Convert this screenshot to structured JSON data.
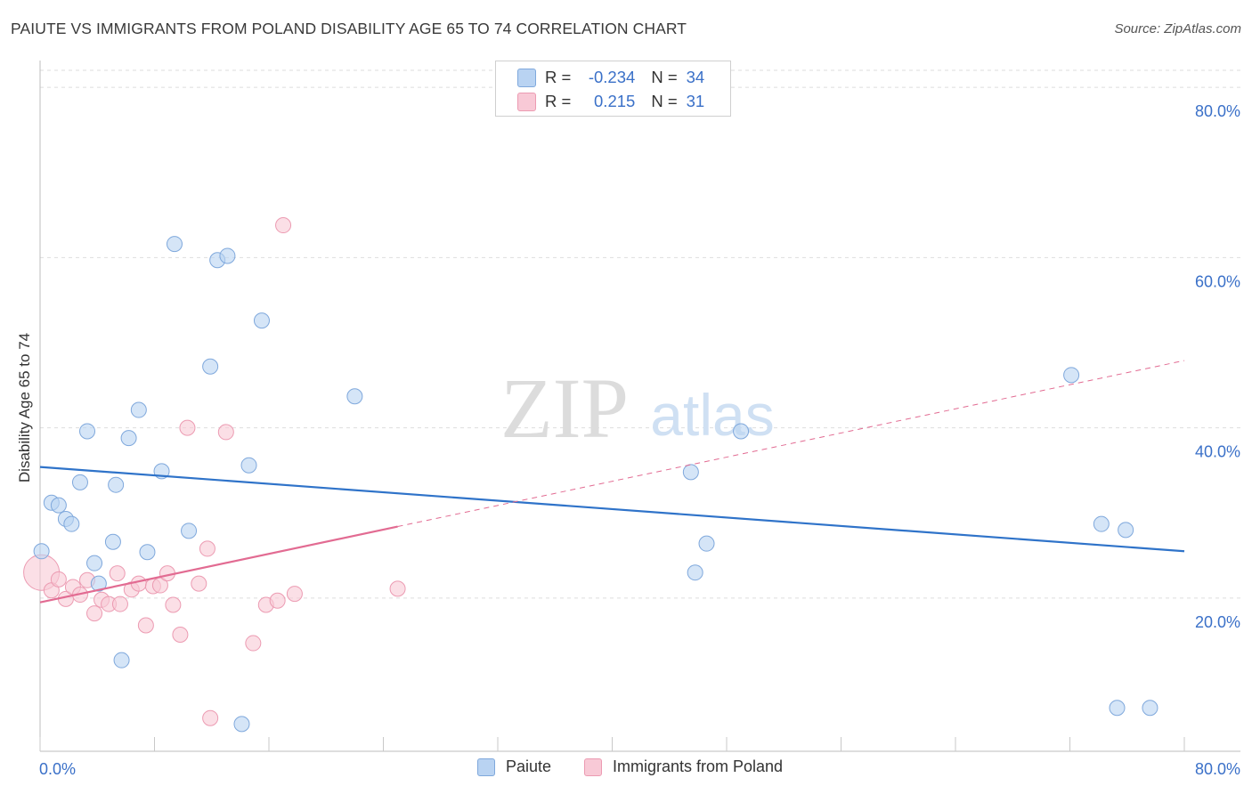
{
  "title": "PAIUTE VS IMMIGRANTS FROM POLAND DISABILITY AGE 65 TO 74 CORRELATION CHART",
  "source": "Source: ZipAtlas.com",
  "watermark": {
    "zip": "ZIP",
    "atlas": "atlas"
  },
  "legend_top": [
    {
      "r_label": "R =",
      "r_value": "-0.234",
      "n_label": "N =",
      "n_value": "34"
    },
    {
      "r_label": "R =",
      "r_value": "0.215",
      "n_label": "N =",
      "n_value": "31"
    }
  ],
  "legend_bottom": [
    {
      "label": "Paiute"
    },
    {
      "label": "Immigrants from Poland"
    }
  ],
  "colors": {
    "blue_fill": "#b9d3f2",
    "blue_stroke": "#7fa8dc",
    "blue_line": "#2f73c9",
    "pink_fill": "#f8c9d6",
    "pink_stroke": "#ec9bb2",
    "pink_line": "#e26b92",
    "axis_text": "#3a70c8",
    "grid": "#dddddd"
  },
  "chart_data": {
    "type": "scatter",
    "title": "PAIUTE VS IMMIGRANTS FROM POLAND DISABILITY AGE 65 TO 74 CORRELATION CHART",
    "xlabel": "",
    "ylabel": "Disability Age 65 to 74",
    "xlim": [
      0,
      80
    ],
    "ylim": [
      2,
      82
    ],
    "x_tick_labels": [
      "0.0%",
      "80.0%"
    ],
    "y_ticks": [
      20,
      40,
      60,
      80
    ],
    "y_tick_labels": [
      "20.0%",
      "40.0%",
      "60.0%",
      "80.0%"
    ],
    "grid": true,
    "legend_position": "bottom",
    "series": [
      {
        "name": "Paiute",
        "color": "#7fa8dc",
        "points": [
          [
            0.1,
            25.5
          ],
          [
            0.8,
            31.2
          ],
          [
            1.3,
            30.9
          ],
          [
            1.8,
            29.3
          ],
          [
            2.2,
            28.7
          ],
          [
            2.8,
            33.6
          ],
          [
            3.3,
            39.6
          ],
          [
            3.8,
            24.1
          ],
          [
            4.1,
            21.7
          ],
          [
            5.1,
            26.6
          ],
          [
            5.3,
            33.3
          ],
          [
            5.7,
            12.7
          ],
          [
            6.2,
            38.8
          ],
          [
            6.9,
            42.1
          ],
          [
            7.5,
            25.4
          ],
          [
            8.5,
            34.9
          ],
          [
            9.4,
            61.6
          ],
          [
            10.4,
            27.9
          ],
          [
            11.9,
            47.2
          ],
          [
            12.4,
            59.7
          ],
          [
            13.1,
            60.2
          ],
          [
            14.1,
            5.2
          ],
          [
            14.6,
            35.6
          ],
          [
            15.5,
            52.6
          ],
          [
            22.0,
            43.7
          ],
          [
            45.5,
            34.8
          ],
          [
            45.8,
            23.0
          ],
          [
            46.6,
            26.4
          ],
          [
            49.0,
            39.6
          ],
          [
            72.1,
            46.2
          ],
          [
            74.2,
            28.7
          ],
          [
            75.3,
            7.1
          ],
          [
            75.9,
            28.0
          ],
          [
            77.6,
            7.1
          ]
        ],
        "trend": {
          "x": [
            0,
            80
          ],
          "y": [
            35.4,
            25.5
          ]
        }
      },
      {
        "name": "Immigrants from Poland",
        "color": "#ec9bb2",
        "points": [
          [
            0.1,
            23.0
          ],
          [
            0.8,
            20.9
          ],
          [
            1.3,
            22.2
          ],
          [
            1.8,
            19.9
          ],
          [
            2.3,
            21.3
          ],
          [
            2.8,
            20.4
          ],
          [
            3.3,
            22.1
          ],
          [
            3.8,
            18.2
          ],
          [
            4.3,
            19.8
          ],
          [
            4.8,
            19.3
          ],
          [
            5.6,
            19.3
          ],
          [
            5.4,
            22.9
          ],
          [
            6.4,
            21.0
          ],
          [
            6.9,
            21.7
          ],
          [
            7.4,
            16.8
          ],
          [
            7.9,
            21.4
          ],
          [
            8.4,
            21.5
          ],
          [
            8.9,
            22.9
          ],
          [
            9.3,
            19.2
          ],
          [
            9.8,
            15.7
          ],
          [
            10.3,
            40.0
          ],
          [
            11.1,
            21.7
          ],
          [
            11.7,
            25.8
          ],
          [
            11.9,
            5.9
          ],
          [
            13.0,
            39.5
          ],
          [
            14.9,
            14.7
          ],
          [
            15.8,
            19.2
          ],
          [
            16.6,
            19.7
          ],
          [
            17.0,
            63.8
          ],
          [
            17.8,
            20.5
          ],
          [
            25.0,
            21.1
          ]
        ],
        "trend": {
          "x": [
            0,
            25
          ],
          "y": [
            19.5,
            28.4
          ]
        },
        "trend_extension": {
          "x": [
            25,
            80
          ],
          "y": [
            28.4,
            47.9
          ]
        }
      }
    ]
  }
}
